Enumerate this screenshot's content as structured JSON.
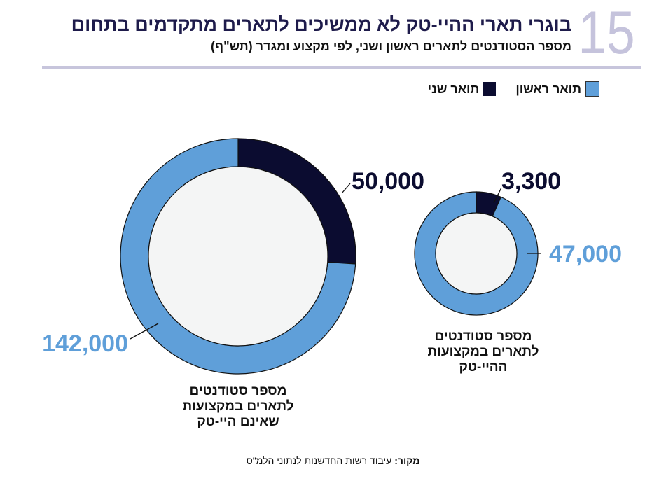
{
  "figure_number": "15",
  "colors": {
    "first_degree": "#5f9fd9",
    "second_degree": "#0b0c30",
    "inner": "#f4f5f5"
  },
  "chart_data": [
    {
      "type": "pie",
      "title": "בוגרי תארי ההיי-טק לא ממשיכים לתארים מתקדמים בתחום",
      "subtitle": "מספר הסטודנטים לתארים ראשון ושני, לפי מקצוע ומגדר (תש\"ף)",
      "legend": [
        "תואר ראשון",
        "תואר שני"
      ],
      "category": "מספר סטודנטים לתארים במקצועות שאינם היי-טק",
      "slices": [
        {
          "name": "תואר שני",
          "value": 50000,
          "label": "50,000"
        },
        {
          "name": "תואר ראשון",
          "value": 142000,
          "label": "142,000"
        }
      ]
    },
    {
      "type": "pie",
      "category": "מספר סטודנטים לתארים במקצועות ההיי-טק",
      "slices": [
        {
          "name": "תואר שני",
          "value": 3300,
          "label": "3,300"
        },
        {
          "name": "תואר ראשון",
          "value": 47000,
          "label": "47,000"
        }
      ]
    }
  ],
  "captions": {
    "big": [
      "מספר סטודנטים",
      "לתארים במקצועות",
      "שאינם היי-טק"
    ],
    "small": [
      "מספר סטודנטים",
      "לתארים במקצועות",
      "ההיי-טק"
    ]
  },
  "source": {
    "label": "מקור:",
    "text": " עיבוד רשות החדשנות לנתוני הלמ\"ס"
  }
}
